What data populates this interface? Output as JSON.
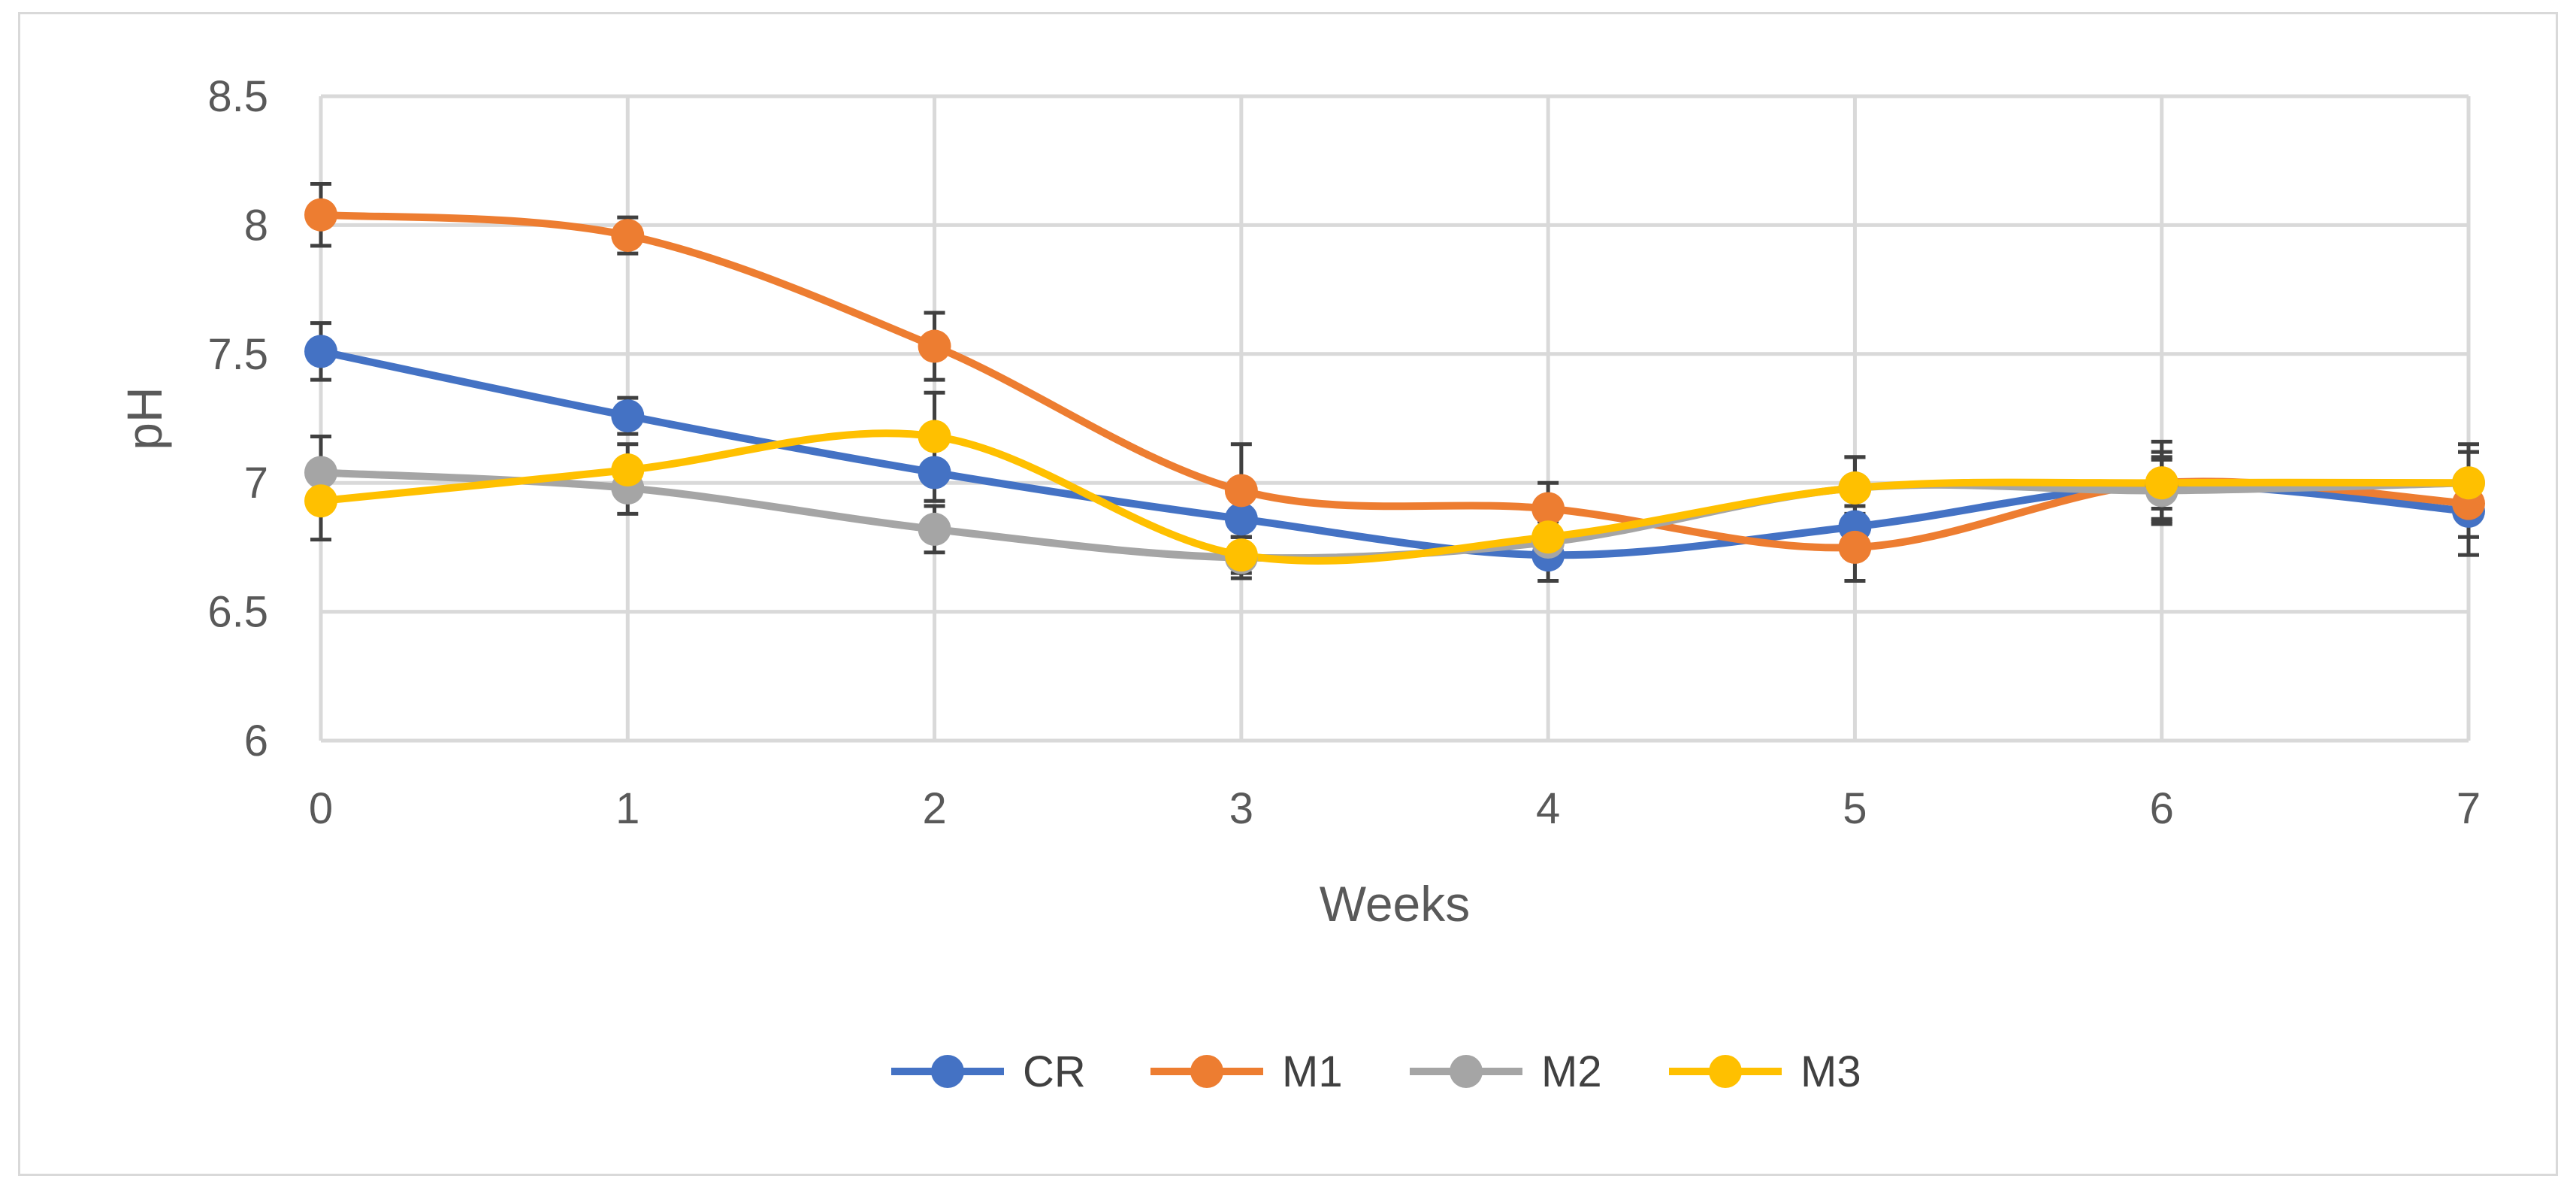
{
  "chart_data": {
    "type": "line",
    "title": "",
    "xlabel": "Weeks",
    "ylabel": "pH",
    "x": [
      0,
      1,
      2,
      3,
      4,
      5,
      6,
      7
    ],
    "x_tick_labels": [
      "0",
      "1",
      "2",
      "3",
      "4",
      "5",
      "6",
      "7"
    ],
    "y_tick_labels": [
      "6",
      "6.5",
      "7",
      "7.5",
      "8",
      "8.5"
    ],
    "ylim": [
      6,
      8.5
    ],
    "xlim": [
      0,
      7
    ],
    "grid": true,
    "smooth": true,
    "legend_position": "bottom",
    "series": [
      {
        "name": "CR",
        "color": "#4472C4",
        "values": [
          7.51,
          7.26,
          7.04,
          6.86,
          6.72,
          6.83,
          6.99,
          6.89
        ],
        "errors": [
          0.11,
          0.07,
          0.11,
          0.1,
          0.1,
          0.08,
          0.13,
          0.1
        ]
      },
      {
        "name": "M1",
        "color": "#ED7D31",
        "values": [
          8.04,
          7.96,
          7.53,
          6.97,
          6.9,
          6.75,
          7.0,
          6.92
        ],
        "errors": [
          0.12,
          0.07,
          0.13,
          0.18,
          0.1,
          0.13,
          0.16,
          0.2
        ]
      },
      {
        "name": "M2",
        "color": "#A5A5A5",
        "values": [
          7.04,
          6.98,
          6.82,
          6.71,
          6.77,
          6.98,
          6.97,
          7.0
        ],
        "errors": [
          0.14,
          0.1,
          0.09,
          0.08,
          0.08,
          0.12,
          0.12,
          0.12
        ]
      },
      {
        "name": "M3",
        "color": "#FFC000",
        "values": [
          6.93,
          7.05,
          7.18,
          6.72,
          6.79,
          6.98,
          7.0,
          7.0
        ],
        "errors": [
          0.15,
          0.1,
          0.17,
          0.07,
          0.1,
          0.12,
          0.1,
          0.15
        ]
      }
    ]
  }
}
